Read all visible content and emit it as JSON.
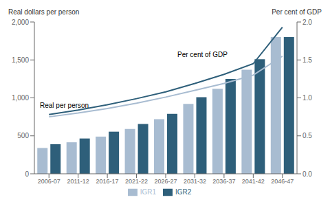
{
  "chart_data": {
    "type": "bar",
    "categories": [
      "2006-07",
      "2011-12",
      "2016-17",
      "2021-22",
      "2026-27",
      "2031-32",
      "2036-37",
      "2041-42",
      "2046-47"
    ],
    "series": [
      {
        "name": "IGR1",
        "type": "bar",
        "color": "#a8bcd1",
        "values": [
          340,
          415,
          490,
          590,
          720,
          920,
          1120,
          1370,
          1800
        ]
      },
      {
        "name": "IGR2",
        "type": "bar",
        "color": "#2e5f7a",
        "values": [
          390,
          465,
          555,
          655,
          790,
          1010,
          1250,
          1510,
          1800
        ]
      },
      {
        "type": "line",
        "axis": "y2",
        "color": "#a8bcd1",
        "values": [
          0.75,
          0.8,
          0.86,
          0.93,
          1.01,
          1.1,
          1.19,
          1.3,
          1.55
        ]
      },
      {
        "type": "line",
        "axis": "y2",
        "color": "#2e5f7a",
        "values": [
          0.78,
          0.84,
          0.91,
          0.99,
          1.08,
          1.19,
          1.31,
          1.45,
          1.93
        ]
      }
    ],
    "y_label": "Real dollars per person",
    "y2_label": "Per cent of GDP",
    "ylim": [
      0,
      2000
    ],
    "yticks": [
      0,
      500,
      {
        "value": 1000,
        "label": "1,000"
      },
      {
        "value": 1500,
        "label": "1,500"
      },
      {
        "value": 2000,
        "label": "2,000"
      }
    ],
    "y2lim": [
      0,
      2
    ],
    "y2ticks": [
      {
        "value": 0,
        "label": "0.0"
      },
      0.5,
      {
        "value": 1,
        "label": "1.0"
      },
      1.5,
      {
        "value": 2,
        "label": "2.0"
      }
    ],
    "annotations": [
      "Per cent of GDP",
      "Real per person"
    ],
    "legend": "bottom",
    "grid": false
  }
}
